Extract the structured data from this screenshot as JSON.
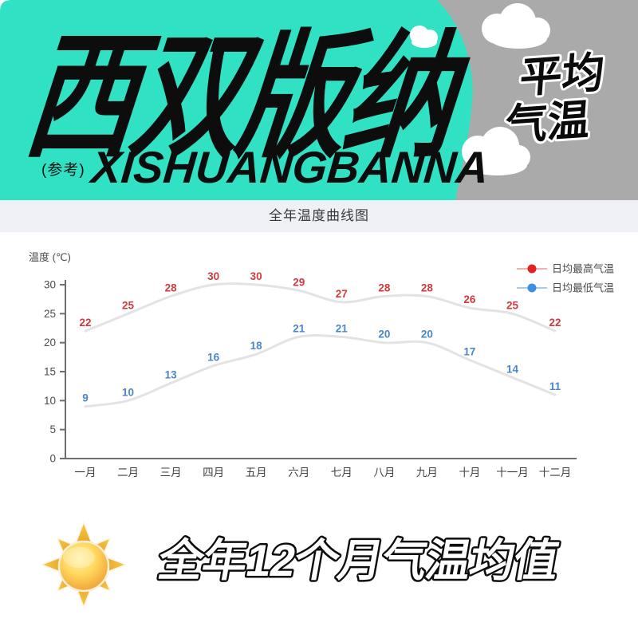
{
  "header": {
    "title_cn": "西双版纳",
    "ref_note": "(参考)",
    "title_en": "XISHUANGBANNA",
    "badge_line1": "平均",
    "badge_line2": "气温",
    "colors": {
      "teal": "#31E1C3",
      "gray": "#AAAAAA"
    }
  },
  "icons": {
    "sun": "sun-icon",
    "cloud": "cloud-icon"
  },
  "chart_data": {
    "type": "line",
    "title": "全年温度曲线图",
    "ylabel": "温度 (℃)",
    "categories": [
      "一月",
      "二月",
      "三月",
      "四月",
      "五月",
      "六月",
      "七月",
      "八月",
      "九月",
      "十月",
      "十一月",
      "十二月"
    ],
    "series": [
      {
        "name": "日均最高气温",
        "values": [
          22,
          25,
          28,
          30,
          30,
          29,
          27,
          28,
          28,
          26,
          25,
          22
        ],
        "label_color": "#CE3A3E",
        "dot_color": "#E32222",
        "leader_color": "#F2AFAF"
      },
      {
        "name": "日均最低气温",
        "values": [
          9,
          10,
          13,
          16,
          18,
          21,
          21,
          20,
          20,
          17,
          14,
          11
        ],
        "label_color": "#4A86CC",
        "dot_color": "#3E8EE4",
        "leader_color": "#A8CCF0"
      }
    ],
    "ylim": [
      0,
      30
    ],
    "yticks": [
      0,
      5,
      10,
      15,
      20,
      25,
      30
    ],
    "grid": false,
    "legend_position": "top-right",
    "line_color": "#E3E3E6"
  },
  "footer": {
    "slogan": "全年12个月气温均值"
  }
}
